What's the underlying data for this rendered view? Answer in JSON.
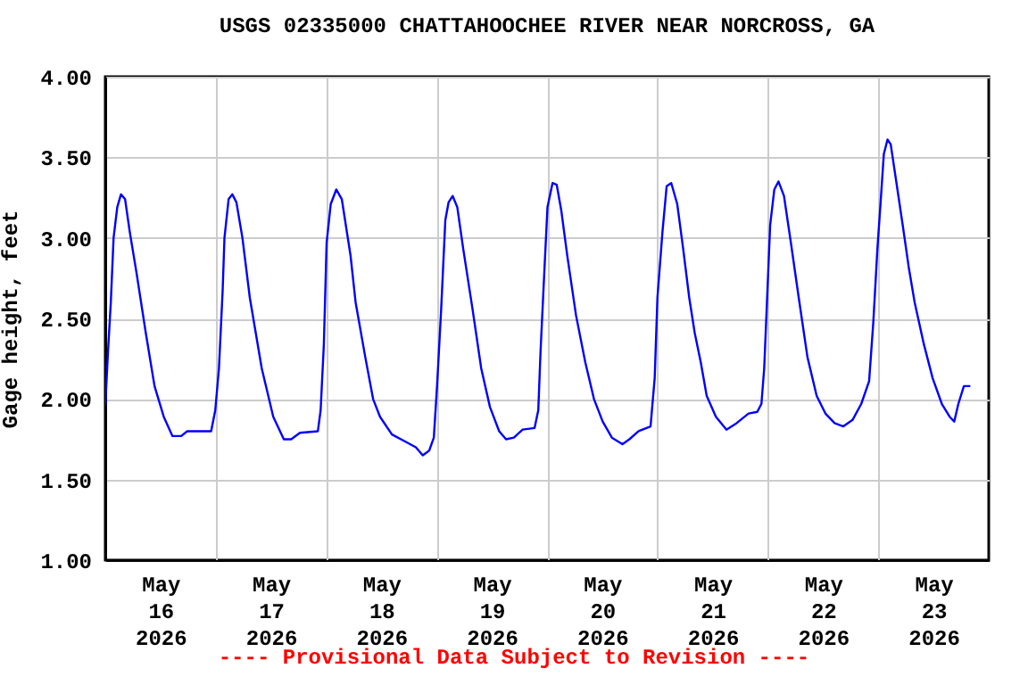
{
  "chart_data": {
    "type": "line",
    "title": "USGS 02335000 CHATTAHOOCHEE RIVER NEAR NORCROSS, GA",
    "ylabel": "Gage height, feet",
    "annotations": [
      "---- Provisional Data Subject to Revision ----"
    ],
    "x": [
      "2026-05-16T00:00",
      "2026-05-16T00:36",
      "2026-05-16T01:12",
      "2026-05-16T01:48",
      "2026-05-16T02:36",
      "2026-05-16T03:24",
      "2026-05-16T04:18",
      "2026-05-16T05:18",
      "2026-05-16T06:48",
      "2026-05-16T08:48",
      "2026-05-16T10:42",
      "2026-05-16T12:42",
      "2026-05-16T14:36",
      "2026-05-16T16:30",
      "2026-05-16T17:48",
      "2026-05-16T23:00",
      "2026-05-16T23:54",
      "2026-05-17T00:42",
      "2026-05-17T01:30",
      "2026-05-17T01:54",
      "2026-05-17T02:48",
      "2026-05-17T03:36",
      "2026-05-17T04:30",
      "2026-05-17T05:48",
      "2026-05-17T07:24",
      "2026-05-17T10:00",
      "2026-05-17T12:30",
      "2026-05-17T14:48",
      "2026-05-17T16:24",
      "2026-05-17T18:18",
      "2026-05-17T22:12",
      "2026-05-17T22:48",
      "2026-05-17T23:30",
      "2026-05-18T00:06",
      "2026-05-18T01:00",
      "2026-05-18T02:12",
      "2026-05-18T03:24",
      "2026-05-18T05:18",
      "2026-05-18T06:24",
      "2026-05-18T08:30",
      "2026-05-18T10:12",
      "2026-05-18T11:42",
      "2026-05-18T14:18",
      "2026-05-18T16:54",
      "2026-05-18T19:30",
      "2026-05-18T21:00",
      "2026-05-18T22:24",
      "2026-05-18T23:24",
      "2026-05-19T00:06",
      "2026-05-19T01:00",
      "2026-05-19T01:54",
      "2026-05-19T02:36",
      "2026-05-19T03:30",
      "2026-05-19T04:30",
      "2026-05-19T05:48",
      "2026-05-19T07:48",
      "2026-05-19T09:42",
      "2026-05-19T11:36",
      "2026-05-19T13:36",
      "2026-05-19T15:06",
      "2026-05-19T16:48",
      "2026-05-19T18:42",
      "2026-05-19T21:18",
      "2026-05-19T22:06",
      "2026-05-19T22:36",
      "2026-05-19T23:24",
      "2026-05-20T00:06",
      "2026-05-20T01:12",
      "2026-05-20T02:06",
      "2026-05-20T03:06",
      "2026-05-20T04:24",
      "2026-05-20T06:18",
      "2026-05-20T08:18",
      "2026-05-20T10:12",
      "2026-05-20T12:06",
      "2026-05-20T14:06",
      "2026-05-20T16:24",
      "2026-05-20T17:54",
      "2026-05-20T19:54",
      "2026-05-20T22:30",
      "2026-05-20T23:24",
      "2026-05-21T00:00",
      "2026-05-21T01:06",
      "2026-05-21T02:00",
      "2026-05-21T03:00",
      "2026-05-21T04:18",
      "2026-05-21T05:36",
      "2026-05-21T06:54",
      "2026-05-21T08:06",
      "2026-05-21T09:24",
      "2026-05-21T10:42",
      "2026-05-21T12:42",
      "2026-05-21T15:00",
      "2026-05-21T17:12",
      "2026-05-21T19:48",
      "2026-05-21T21:42",
      "2026-05-21T22:36",
      "2026-05-21T23:12",
      "2026-05-21T23:54",
      "2026-05-22T00:30",
      "2026-05-22T01:24",
      "2026-05-22T02:18",
      "2026-05-22T03:30",
      "2026-05-22T05:00",
      "2026-05-22T06:42",
      "2026-05-22T08:36",
      "2026-05-22T10:36",
      "2026-05-22T12:30",
      "2026-05-22T14:30",
      "2026-05-22T16:24",
      "2026-05-22T18:24",
      "2026-05-22T20:18",
      "2026-05-22T22:00",
      "2026-05-22T22:54",
      "2026-05-22T23:48",
      "2026-05-23T00:30",
      "2026-05-23T01:12",
      "2026-05-23T02:00",
      "2026-05-23T02:42",
      "2026-05-23T04:00",
      "2026-05-23T05:18",
      "2026-05-23T06:36",
      "2026-05-23T07:54",
      "2026-05-23T09:54",
      "2026-05-23T11:48",
      "2026-05-23T13:48",
      "2026-05-23T15:30",
      "2026-05-23T16:30",
      "2026-05-23T17:24",
      "2026-05-23T18:36",
      "2026-05-23T20:00"
    ],
    "series": [
      {
        "color": "#0000ff",
        "values": [
          1.96,
          2.3,
          2.6,
          3.0,
          3.19,
          3.27,
          3.24,
          3.04,
          2.78,
          2.41,
          2.08,
          1.89,
          1.77,
          1.77,
          1.8,
          1.8,
          1.93,
          2.19,
          2.67,
          3.0,
          3.24,
          3.27,
          3.22,
          3.0,
          2.63,
          2.19,
          1.89,
          1.75,
          1.75,
          1.79,
          1.8,
          1.93,
          2.34,
          2.97,
          3.21,
          3.3,
          3.24,
          2.89,
          2.6,
          2.26,
          2.0,
          1.89,
          1.78,
          1.74,
          1.7,
          1.65,
          1.68,
          1.76,
          2.08,
          2.56,
          3.11,
          3.22,
          3.26,
          3.19,
          2.93,
          2.56,
          2.19,
          1.95,
          1.8,
          1.75,
          1.76,
          1.81,
          1.82,
          1.93,
          2.3,
          2.78,
          3.19,
          3.34,
          3.33,
          3.17,
          2.89,
          2.52,
          2.23,
          2.0,
          1.86,
          1.76,
          1.72,
          1.75,
          1.8,
          1.83,
          2.13,
          2.63,
          3.04,
          3.32,
          3.34,
          3.21,
          2.93,
          2.63,
          2.41,
          2.23,
          2.02,
          1.89,
          1.81,
          1.85,
          1.91,
          1.92,
          1.97,
          2.19,
          2.67,
          3.08,
          3.3,
          3.35,
          3.26,
          2.97,
          2.63,
          2.26,
          2.02,
          1.91,
          1.85,
          1.83,
          1.87,
          1.97,
          2.11,
          2.47,
          2.93,
          3.22,
          3.52,
          3.61,
          3.58,
          3.33,
          3.08,
          2.82,
          2.6,
          2.34,
          2.13,
          1.97,
          1.89,
          1.86,
          1.97,
          2.08,
          2.08
        ]
      }
    ],
    "xlim": [
      "2026-05-16T00:00",
      "2026-05-24T00:00"
    ],
    "xticks": [
      {
        "value": "2026-05-16T12:00",
        "label": "May\n16\n2026"
      },
      {
        "value": "2026-05-17T12:00",
        "label": "May\n17\n2026"
      },
      {
        "value": "2026-05-18T12:00",
        "label": "May\n18\n2026"
      },
      {
        "value": "2026-05-19T12:00",
        "label": "May\n19\n2026"
      },
      {
        "value": "2026-05-20T12:00",
        "label": "May\n20\n2026"
      },
      {
        "value": "2026-05-21T12:00",
        "label": "May\n21\n2026"
      },
      {
        "value": "2026-05-22T12:00",
        "label": "May\n22\n2026"
      },
      {
        "value": "2026-05-23T12:00",
        "label": "May\n23\n2026"
      },
      {
        "value": "2026-05-17T00:00",
        "label": null
      },
      {
        "value": "2026-05-18T00:00",
        "label": null
      },
      {
        "value": "2026-05-19T00:00",
        "label": null
      },
      {
        "value": "2026-05-20T00:00",
        "label": null
      },
      {
        "value": "2026-05-21T00:00",
        "label": null
      },
      {
        "value": "2026-05-22T00:00",
        "label": null
      },
      {
        "value": "2026-05-23T00:00",
        "label": null
      }
    ],
    "ylim": [
      1,
      4
    ],
    "yticks": [
      {
        "value": 1,
        "label": "1.00"
      },
      {
        "value": 1.5,
        "label": "1.50"
      },
      {
        "value": 2,
        "label": "2.00"
      },
      {
        "value": 2.5,
        "label": "2.50"
      },
      {
        "value": 3,
        "label": "3.00"
      },
      {
        "value": 3.5,
        "label": "3.50"
      },
      {
        "value": 4,
        "label": "4.00"
      }
    ],
    "grid": true
  }
}
